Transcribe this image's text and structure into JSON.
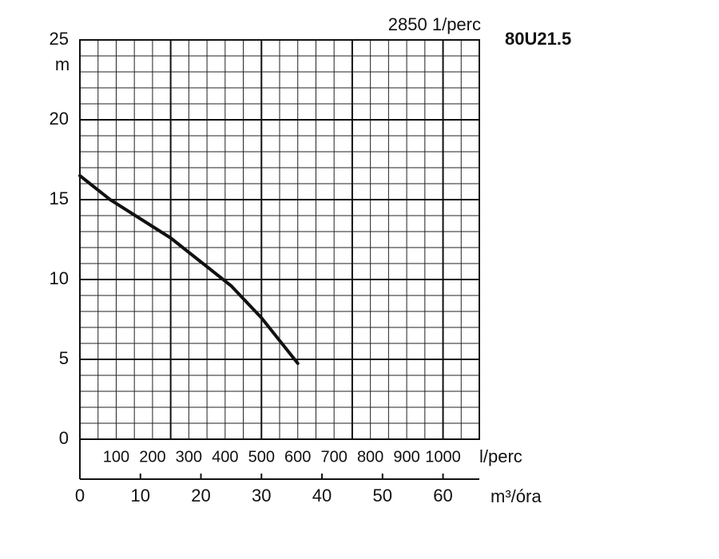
{
  "chart_data": {
    "type": "line",
    "title": "80U21.5",
    "subtitle": "2850 1/perc",
    "y_label": "m",
    "x_label": "m³/óra",
    "x2_label": "l/perc",
    "x": [
      0,
      5,
      10,
      15,
      20,
      25,
      30,
      36
    ],
    "values": [
      16.5,
      15,
      13.8,
      12.6,
      11.1,
      9.6,
      7.6,
      4.75
    ],
    "color": "#111111",
    "xlim": [
      0,
      66
    ],
    "xticks": [
      0,
      10,
      20,
      30,
      40,
      50,
      60
    ],
    "x2lim": [
      0,
      1100
    ],
    "x2ticks": [
      100,
      200,
      300,
      400,
      500,
      600,
      700,
      800,
      900,
      1000
    ],
    "ylim": [
      0,
      25
    ],
    "yticks": [
      0,
      5,
      10,
      15,
      20,
      25
    ],
    "xgrid_minor": [
      3,
      6,
      9,
      12,
      18,
      21,
      24,
      27,
      33,
      36,
      39,
      42,
      48,
      51,
      54,
      57,
      63
    ],
    "xgrid_major": [
      15,
      30,
      45,
      60
    ],
    "ygrid_minor": [
      1,
      2,
      3,
      4,
      6,
      7,
      8,
      9,
      11,
      12,
      13,
      14,
      16,
      17,
      18,
      19,
      21,
      22,
      23,
      24
    ],
    "grid": true
  }
}
